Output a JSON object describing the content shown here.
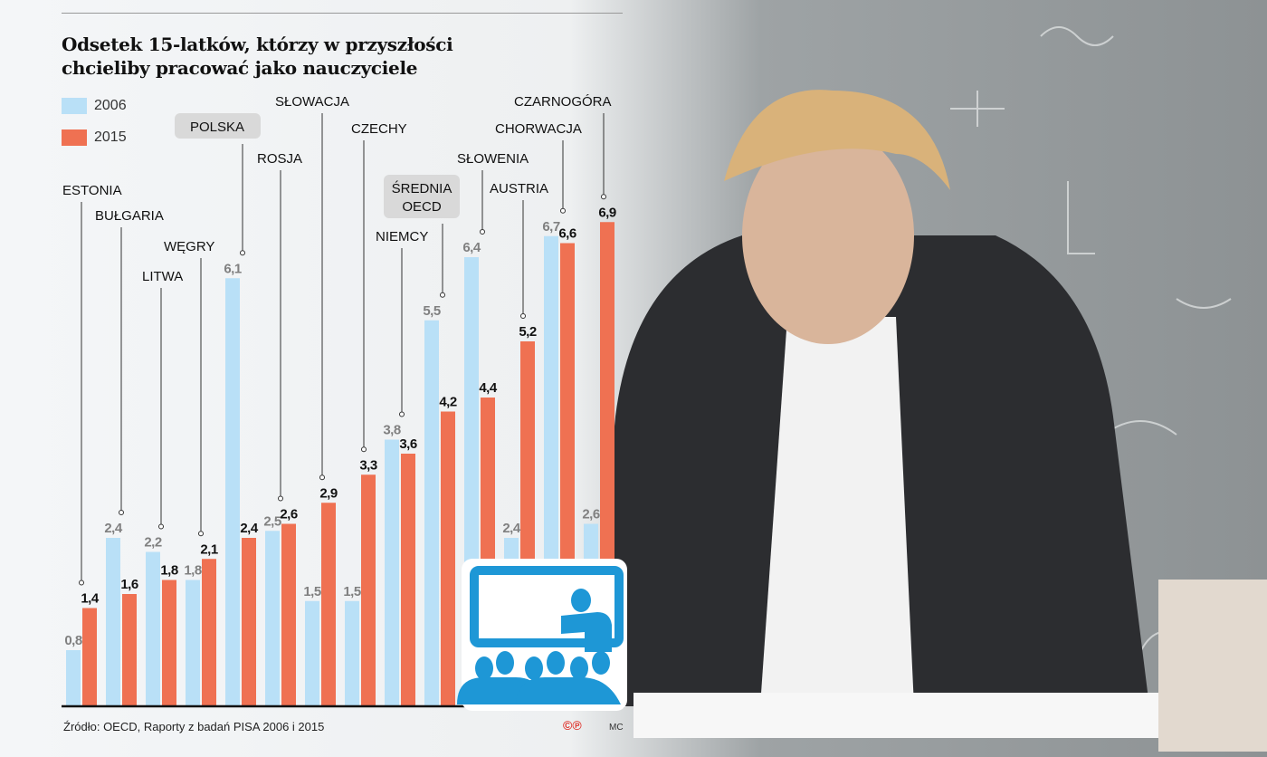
{
  "chart_data": {
    "type": "bar",
    "title": "Odsetek 15-latków, którzy w przyszłości chcieliby pracować jako nauczyciele",
    "categories": [
      "ESTONIA",
      "BUŁGARIA",
      "LITWA",
      "WĘGRY",
      "POLSKA",
      "ROSJA",
      "SŁOWACJA",
      "CZECHY",
      "NIEMCY",
      "ŚREDNIA OECD",
      "SŁOWENIA",
      "AUSTRIA",
      "CHORWACJA",
      "CZARNOGÓRA"
    ],
    "highlighted": [
      "POLSKA",
      "ŚREDNIA OECD"
    ],
    "series": [
      {
        "name": "2006",
        "color": "#b9e0f7",
        "values": [
          0.8,
          2.4,
          2.2,
          1.8,
          6.1,
          2.5,
          1.5,
          1.5,
          3.8,
          5.5,
          6.4,
          2.4,
          6.7,
          2.6
        ]
      },
      {
        "name": "2015",
        "color": "#ef7152",
        "values": [
          1.4,
          1.6,
          1.8,
          2.1,
          2.4,
          2.6,
          2.9,
          3.3,
          3.6,
          4.2,
          4.4,
          5.2,
          6.6,
          6.9
        ]
      }
    ],
    "value_labels_2006": [
      "0,8",
      "2,4",
      "2,2",
      "1,8",
      "6,1",
      "2,5",
      "1,5",
      "1,5",
      "3,8",
      "5,5",
      "6,4",
      "2,4",
      "6,7",
      "2,6"
    ],
    "value_labels_2015": [
      "1,4",
      "1,6",
      "1,8",
      "2,1",
      "2,4",
      "2,6",
      "2,9",
      "3,3",
      "3,6",
      "4,2",
      "4,4",
      "5,2",
      "6,6",
      "6,9"
    ],
    "ylim": [
      0,
      7
    ],
    "grid": false,
    "legend": "top-left"
  },
  "source": "Źródło: OECD, Raporty z badań PISA 2006 i 2015",
  "copyright": "©℗",
  "author": "MC",
  "icons": [
    "teacher-presentation-icon"
  ]
}
